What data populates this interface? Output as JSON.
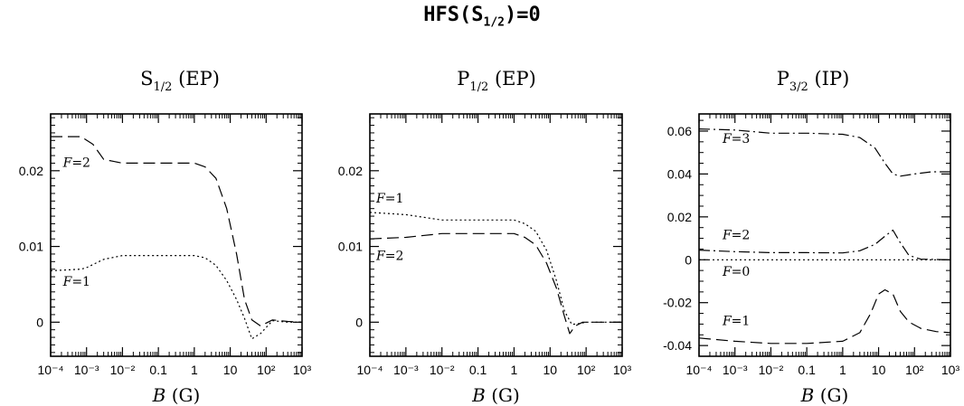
{
  "title": {
    "main": "HFS(S",
    "sub": "1/2",
    "tail": ")=0"
  },
  "chart_data": [
    {
      "type": "line",
      "title": {
        "main": "S",
        "sub": "1/2",
        "tail": " (EP)"
      },
      "xlabel": {
        "var": "B",
        "unit": " (G)"
      },
      "xscale": "log",
      "xlim": [
        0.0001,
        1000
      ],
      "ylim": [
        -0.0045,
        0.0275
      ],
      "yticks": [
        0,
        0.01,
        0.02
      ],
      "ytick_labels": [
        "0",
        "0.01",
        "0.02"
      ],
      "xtick_labels": [
        "10⁻⁴",
        "10⁻³",
        "10⁻²",
        "0.1",
        "1",
        "10",
        "10²",
        "10³"
      ],
      "series": [
        {
          "name": "F=2",
          "dash": "dashed",
          "x": [
            0.0001,
            0.0007,
            0.0015,
            0.003,
            0.01,
            0.1,
            1,
            2,
            4,
            8,
            15,
            25,
            40,
            70,
            150,
            400,
            1000
          ],
          "y": [
            0.0245,
            0.0245,
            0.0235,
            0.0215,
            0.021,
            0.021,
            0.021,
            0.0205,
            0.019,
            0.015,
            0.009,
            0.003,
            0.0003,
            -0.0005,
            0.0003,
            0.0001,
            0.0
          ]
        },
        {
          "name": "F=1",
          "dash": "dotted",
          "x": [
            0.0001,
            0.0007,
            0.001,
            0.003,
            0.01,
            0.1,
            1,
            2,
            4,
            8,
            15,
            25,
            40,
            70,
            150,
            400,
            1000
          ],
          "y": [
            0.0068,
            0.007,
            0.0072,
            0.0083,
            0.0088,
            0.0088,
            0.0088,
            0.0085,
            0.0075,
            0.0055,
            0.003,
            0.0005,
            -0.0022,
            -0.0015,
            0.0002,
            0.0,
            0.0
          ]
        }
      ],
      "curve_labels": [
        {
          "text": "F=2",
          "x": 0.00022,
          "y": 0.0205
        },
        {
          "text": "F=1",
          "x": 0.00022,
          "y": 0.0048
        }
      ]
    },
    {
      "type": "line",
      "title": {
        "main": "P",
        "sub": "1/2",
        "tail": " (EP)"
      },
      "xlabel": {
        "var": "B",
        "unit": " (G)"
      },
      "xscale": "log",
      "xlim": [
        0.0001,
        1000
      ],
      "ylim": [
        -0.0045,
        0.0275
      ],
      "yticks": [
        0,
        0.01,
        0.02
      ],
      "ytick_labels": [
        "0",
        "0.01",
        "0.02"
      ],
      "xtick_labels": [
        "10⁻⁴",
        "10⁻³",
        "10⁻²",
        "0.1",
        "1",
        "10",
        "10²",
        "10³"
      ],
      "series": [
        {
          "name": "F=1",
          "dash": "dotted",
          "x": [
            0.0001,
            0.001,
            0.01,
            0.1,
            1,
            2,
            4,
            8,
            15,
            25,
            40,
            60,
            100,
            200,
            1000
          ],
          "y": [
            0.0145,
            0.0142,
            0.0135,
            0.0135,
            0.0135,
            0.013,
            0.012,
            0.0095,
            0.0055,
            0.0015,
            -0.0003,
            -0.0002,
            0.0,
            0.0,
            0.0
          ]
        },
        {
          "name": "F=2",
          "dash": "dashed",
          "x": [
            0.0001,
            0.001,
            0.01,
            0.1,
            1,
            2,
            4,
            8,
            15,
            25,
            35,
            50,
            80,
            150,
            1000
          ],
          "y": [
            0.011,
            0.0112,
            0.0117,
            0.0117,
            0.0117,
            0.0112,
            0.0102,
            0.0078,
            0.0045,
            0.0008,
            -0.0015,
            -0.0005,
            0.0,
            0.0,
            0.0
          ]
        }
      ],
      "curve_labels": [
        {
          "text": "F=1",
          "x": 0.00015,
          "y": 0.0158
        },
        {
          "text": "F=2",
          "x": 0.00015,
          "y": 0.0082
        }
      ]
    },
    {
      "type": "line",
      "title": {
        "main": "P",
        "sub": "3/2",
        "tail": " (IP)"
      },
      "xlabel": {
        "var": "B",
        "unit": " (G)"
      },
      "xscale": "log",
      "xlim": [
        0.0001,
        1000
      ],
      "ylim": [
        -0.045,
        0.068
      ],
      "yticks": [
        -0.04,
        -0.02,
        0,
        0.02,
        0.04,
        0.06
      ],
      "ytick_labels": [
        "-0.04",
        "-0.02",
        "0",
        "0.02",
        "0.04",
        "0.06"
      ],
      "xtick_labels": [
        "10⁻⁴",
        "10⁻³",
        "10⁻²",
        "0.1",
        "1",
        "10",
        "10²",
        "10³"
      ],
      "series": [
        {
          "name": "F=3",
          "dash": "dashdot",
          "x": [
            0.0001,
            0.001,
            0.01,
            0.1,
            1,
            3,
            8,
            15,
            25,
            40,
            100,
            300,
            1000
          ],
          "y": [
            0.061,
            0.0605,
            0.059,
            0.059,
            0.0585,
            0.057,
            0.052,
            0.045,
            0.04,
            0.039,
            0.04,
            0.041,
            0.041
          ]
        },
        {
          "name": "F=2",
          "dash": "dashdot",
          "x": [
            0.0001,
            0.001,
            0.01,
            0.1,
            1,
            3,
            8,
            15,
            25,
            40,
            70,
            150,
            1000
          ],
          "y": [
            0.0045,
            0.0038,
            0.0033,
            0.0033,
            0.0032,
            0.0042,
            0.0072,
            0.011,
            0.0138,
            0.008,
            0.002,
            0.0003,
            0.0
          ]
        },
        {
          "name": "F=0",
          "dash": "dotted",
          "x": [
            0.0001,
            1000
          ],
          "y": [
            0.0,
            0.0
          ]
        },
        {
          "name": "F=1",
          "dash": "dashed",
          "x": [
            0.0001,
            0.001,
            0.01,
            0.1,
            1,
            3,
            6,
            10,
            15,
            25,
            40,
            70,
            150,
            400,
            1000
          ],
          "y": [
            -0.0365,
            -0.038,
            -0.039,
            -0.039,
            -0.038,
            -0.034,
            -0.025,
            -0.016,
            -0.014,
            -0.016,
            -0.024,
            -0.029,
            -0.032,
            -0.0335,
            -0.034
          ]
        }
      ],
      "curve_labels": [
        {
          "text": "F=3",
          "x": 0.00045,
          "y": 0.0545
        },
        {
          "text": "F=2",
          "x": 0.00045,
          "y": 0.0095
        },
        {
          "text": "F=0",
          "x": 0.00045,
          "y": -0.0075
        },
        {
          "text": "F=1",
          "x": 0.00045,
          "y": -0.0305
        }
      ]
    }
  ]
}
